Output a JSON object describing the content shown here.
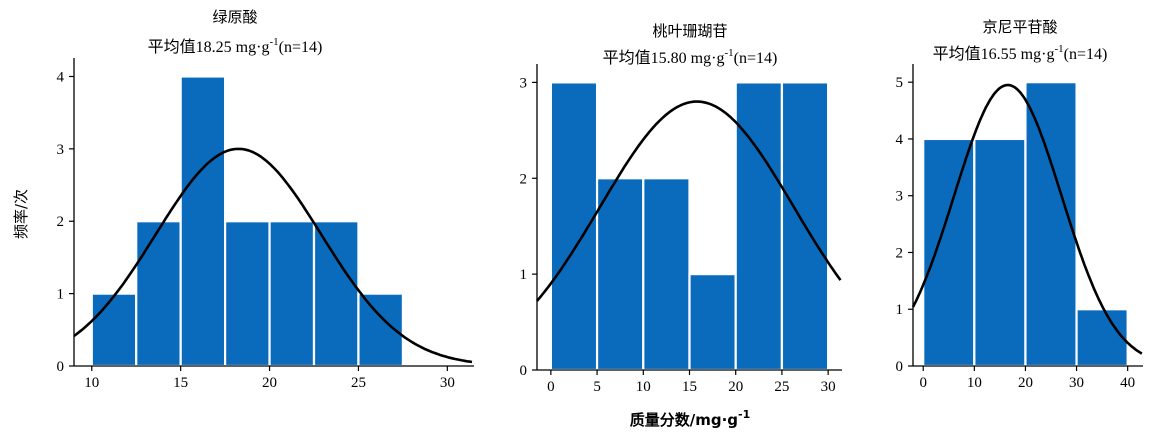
{
  "labels": {
    "ylabel": "频率/次",
    "xlabel_prefix": "质量分数/mg·g",
    "xlabel_sup": "-1"
  },
  "chart_data": [
    {
      "type": "bar",
      "title": "绿原酸",
      "subtitle_prefix": "平均值18.25 mg·g",
      "subtitle_sup": "-1",
      "subtitle_suffix": "(n=14)",
      "bin_edges": [
        10,
        12.5,
        15,
        17.5,
        20,
        22.5,
        25,
        27.5
      ],
      "values": [
        1,
        2,
        4,
        2,
        2,
        2,
        1
      ],
      "xlim": [
        9,
        31.5
      ],
      "ylim": [
        0,
        4.2
      ],
      "xticks": [
        10,
        15,
        20,
        25,
        30
      ],
      "yticks": [
        0,
        1,
        2,
        3,
        4
      ],
      "curve": {
        "type": "normal",
        "mean": 18.25,
        "sd": 4.65,
        "peak": 3.0
      }
    },
    {
      "type": "bar",
      "title": "桃叶珊瑚苷",
      "subtitle_prefix": "平均值15.80 mg·g",
      "subtitle_sup": "-1",
      "subtitle_suffix": "(n=14)",
      "bin_edges": [
        0,
        5,
        10,
        15,
        20,
        25,
        30
      ],
      "values": [
        3,
        2,
        2,
        1,
        3,
        3
      ],
      "xlim": [
        -1.5,
        31.5
      ],
      "ylim": [
        0,
        3.15
      ],
      "xticks": [
        0,
        5,
        10,
        15,
        20,
        25,
        30
      ],
      "yticks": [
        0,
        1,
        2,
        3
      ],
      "curve": {
        "type": "normal",
        "mean": 15.8,
        "sd": 10.5,
        "peak": 2.8
      }
    },
    {
      "type": "bar",
      "title": "京尼平苷酸",
      "subtitle_prefix": "平均值16.55 mg·g",
      "subtitle_sup": "-1",
      "subtitle_suffix": "(n=14)",
      "bin_edges": [
        0,
        10,
        20,
        30,
        40
      ],
      "values": [
        4,
        4,
        5,
        1
      ],
      "xlim": [
        -2,
        43
      ],
      "ylim": [
        0,
        5.25
      ],
      "xticks": [
        0,
        10,
        20,
        30,
        40
      ],
      "yticks": [
        0,
        1,
        2,
        3,
        4,
        5
      ],
      "curve": {
        "type": "normal",
        "mean": 16.55,
        "sd": 10.5,
        "peak": 4.95
      }
    }
  ]
}
